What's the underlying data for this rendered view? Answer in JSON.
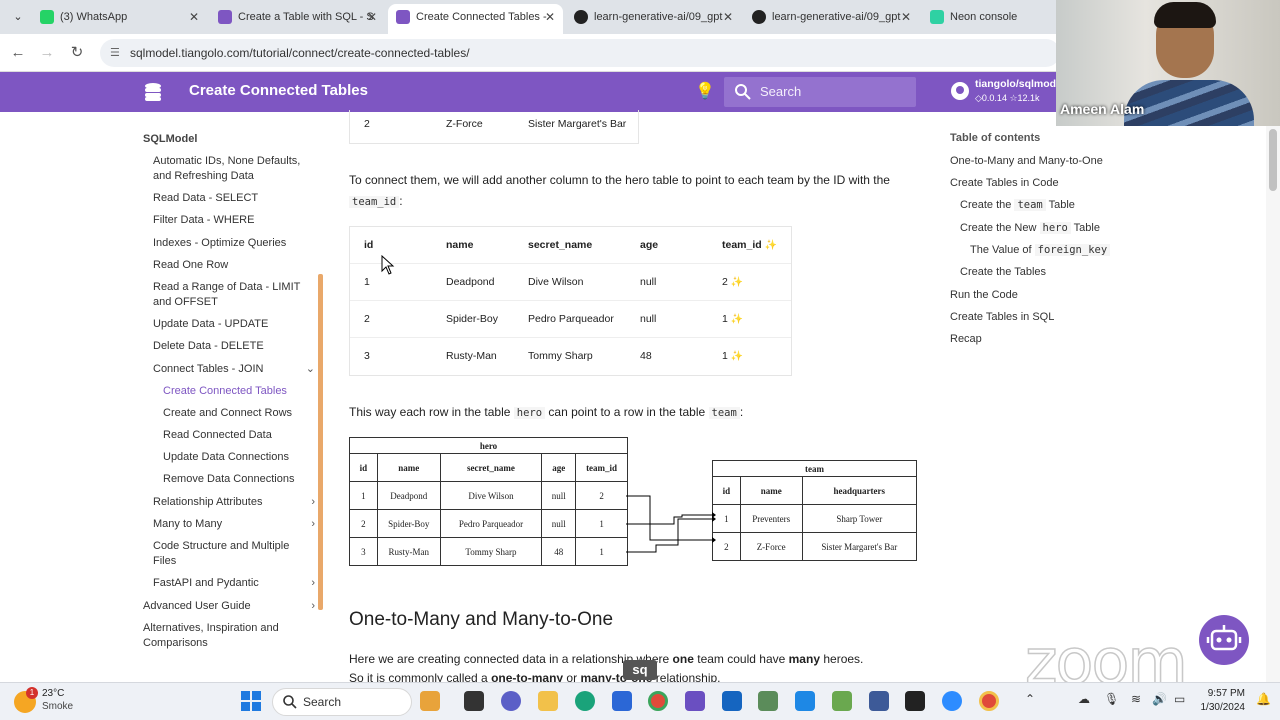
{
  "browser": {
    "tabs": [
      {
        "title": "(3) WhatsApp",
        "active": false
      },
      {
        "title": "Create a Table with SQL - S",
        "active": false
      },
      {
        "title": "Create Connected Tables -",
        "active": true
      },
      {
        "title": "learn-generative-ai/09_gpt",
        "active": false
      },
      {
        "title": "learn-generative-ai/09_gpt",
        "active": false
      },
      {
        "title": "Neon console",
        "active": false
      }
    ],
    "url": "sqlmodel.tiangolo.com/tutorial/connect/create-connected-tables/"
  },
  "header": {
    "title": "Create Connected Tables",
    "search_placeholder": "Search",
    "repo_name": "tiangolo/sqlmodel",
    "repo_version": "0.0.14",
    "repo_stars": "12.1k"
  },
  "webcam": {
    "name": "Ameen Alam"
  },
  "sidebar": {
    "title": "SQLModel",
    "items": [
      {
        "label": "Automatic IDs, None Defaults, and Refreshing Data"
      },
      {
        "label": "Read Data - SELECT"
      },
      {
        "label": "Filter Data - WHERE"
      },
      {
        "label": "Indexes - Optimize Queries"
      },
      {
        "label": "Read One Row"
      },
      {
        "label": "Read a Range of Data - LIMIT and OFFSET"
      },
      {
        "label": "Update Data - UPDATE"
      },
      {
        "label": "Delete Data - DELETE"
      },
      {
        "label": "Connect Tables - JOIN"
      },
      {
        "label": "Create Connected Tables"
      },
      {
        "label": "Create and Connect Rows"
      },
      {
        "label": "Read Connected Data"
      },
      {
        "label": "Update Data Connections"
      },
      {
        "label": "Remove Data Connections"
      },
      {
        "label": "Relationship Attributes"
      },
      {
        "label": "Many to Many"
      },
      {
        "label": "Code Structure and Multiple Files"
      },
      {
        "label": "FastAPI and Pydantic"
      },
      {
        "label": "Advanced User Guide"
      },
      {
        "label": "Alternatives, Inspiration and Comparisons"
      }
    ]
  },
  "main": {
    "team_row_partial": {
      "id": "2",
      "name": "Z-Force",
      "headquarters": "Sister Margaret's Bar"
    },
    "para1_text": "To connect them, we will add another column to the hero table to point to each team by the ID with the",
    "para1_code": "team_id",
    "para1_end": ":",
    "hero_table": {
      "headers": [
        "id",
        "name",
        "secret_name",
        "age",
        "team_id"
      ],
      "rows": [
        [
          "1",
          "Deadpond",
          "Dive Wilson",
          "null",
          "2"
        ],
        [
          "2",
          "Spider-Boy",
          "Pedro Parqueador",
          "null",
          "1"
        ],
        [
          "3",
          "Rusty-Man",
          "Tommy Sharp",
          "48",
          "1"
        ]
      ]
    },
    "para2_a": "This way each row in the table",
    "para2_code1": "hero",
    "para2_b": "can point to a row in the table",
    "para2_code2": "team",
    "para2_end": ":",
    "diagram": {
      "hero_title": "hero",
      "hero_headers": [
        "id",
        "name",
        "secret_name",
        "age",
        "team_id"
      ],
      "hero_rows": [
        [
          "1",
          "Deadpond",
          "Dive Wilson",
          "null",
          "2"
        ],
        [
          "2",
          "Spider-Boy",
          "Pedro Parqueador",
          "null",
          "1"
        ],
        [
          "3",
          "Rusty-Man",
          "Tommy Sharp",
          "48",
          "1"
        ]
      ],
      "team_title": "team",
      "team_headers": [
        "id",
        "name",
        "headquarters"
      ],
      "team_rows": [
        [
          "1",
          "Preventers",
          "Sharp Tower"
        ],
        [
          "2",
          "Z-Force",
          "Sister Margaret's Bar"
        ]
      ]
    },
    "heading": "One-to-Many and Many-to-One",
    "para3_a": "Here we are creating connected data in a relationship where",
    "para3_b1": "one",
    "para3_c": "team could have",
    "para3_b2": "many",
    "para3_d": "heroes.",
    "para3_line2_a": "So it is commonly called a",
    "para3_line2_b": "one-to-many",
    "para3_line2_c": "or",
    "para3_line2_d": "many-to-one",
    "para3_line2_e": "relationship."
  },
  "toc": {
    "title": "Table of contents",
    "items": [
      {
        "label": "One-to-Many and Many-to-One"
      },
      {
        "label": "Create Tables in Code"
      },
      {
        "label_a": "Create the",
        "code": "team",
        "label_b": "Table"
      },
      {
        "label_a": "Create the New",
        "code": "hero",
        "label_b": "Table"
      },
      {
        "label_a": "The Value of",
        "code": "foreign_key",
        "label_b": ""
      },
      {
        "label": "Create the Tables"
      },
      {
        "label": "Run the Code"
      },
      {
        "label": "Create Tables in SQL"
      },
      {
        "label": "Recap"
      }
    ]
  },
  "overlay": {
    "zoom_text": "zoom",
    "sq_badge": "sq"
  },
  "taskbar": {
    "weather_temp": "23°C",
    "weather_cond": "Smoke",
    "weather_badge": "1",
    "search_label": "Search",
    "time": "9:57 PM",
    "date": "1/30/2024"
  },
  "colors": {
    "brand": "#7e56c2",
    "accent_active": "#7e56c2",
    "sidebar_scroll": "#e9a86a"
  }
}
